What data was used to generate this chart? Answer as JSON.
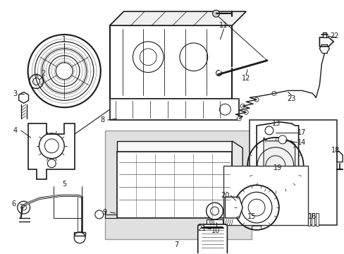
{
  "bg_color": "#ffffff",
  "line_color": "#1a1a1a",
  "fig_width": 4.89,
  "fig_height": 3.6,
  "dpi": 100,
  "font_size": 7.0,
  "font_size_small": 6.5,
  "gray_box_color": "#e0e0e0",
  "gray_box_edge": "#aaaaaa"
}
